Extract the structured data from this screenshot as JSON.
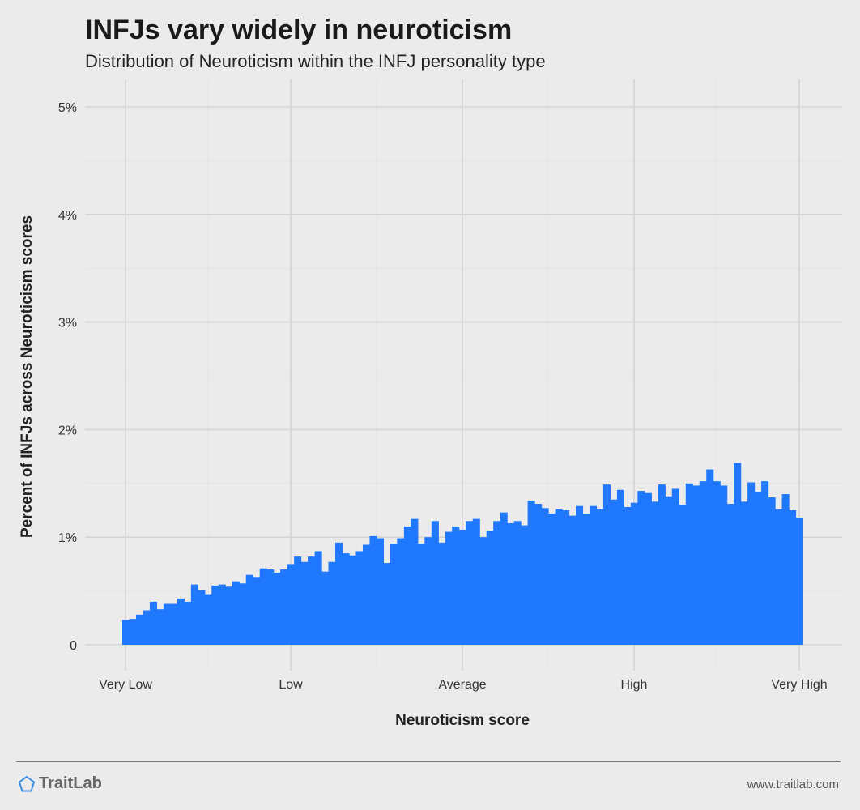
{
  "title": "INFJs vary widely in neuroticism",
  "subtitle": "Distribution of Neuroticism within the INFJ personality type",
  "footer": {
    "brand": "TraitLab",
    "site": "www.traitlab.com",
    "brand_color": "#3b8de6"
  },
  "chart_data": {
    "type": "bar",
    "xlabel": "Neuroticism score",
    "ylabel": "Percent of INFJs across Neuroticism scores",
    "x_tick_labels": [
      "Very Low",
      "Low",
      "Average",
      "High",
      "Very High"
    ],
    "y_tick_labels": [
      "0",
      "1%",
      "2%",
      "3%",
      "4%",
      "5%"
    ],
    "y_ticks": [
      0,
      1,
      2,
      3,
      4,
      5
    ],
    "ylim": [
      0,
      5
    ],
    "grid": true,
    "bar_color": "#1f78ff",
    "values": [
      0.23,
      0.24,
      0.28,
      0.32,
      0.4,
      0.33,
      0.38,
      0.38,
      0.43,
      0.4,
      0.56,
      0.51,
      0.47,
      0.55,
      0.56,
      0.54,
      0.59,
      0.57,
      0.65,
      0.63,
      0.71,
      0.7,
      0.67,
      0.7,
      0.75,
      0.82,
      0.77,
      0.82,
      0.87,
      0.68,
      0.77,
      0.95,
      0.85,
      0.83,
      0.87,
      0.93,
      1.01,
      0.99,
      0.76,
      0.94,
      0.99,
      1.1,
      1.17,
      0.94,
      1.0,
      1.15,
      0.95,
      1.05,
      1.1,
      1.07,
      1.15,
      1.17,
      1.0,
      1.06,
      1.15,
      1.23,
      1.13,
      1.15,
      1.11,
      1.34,
      1.31,
      1.27,
      1.22,
      1.26,
      1.25,
      1.2,
      1.29,
      1.22,
      1.29,
      1.26,
      1.49,
      1.35,
      1.44,
      1.28,
      1.32,
      1.43,
      1.41,
      1.33,
      1.49,
      1.38,
      1.45,
      1.3,
      1.5,
      1.48,
      1.52,
      1.63,
      1.52,
      1.48,
      1.31,
      1.69,
      1.33,
      1.51,
      1.42,
      1.52,
      1.37,
      1.26,
      1.4,
      1.25,
      1.18
    ]
  }
}
